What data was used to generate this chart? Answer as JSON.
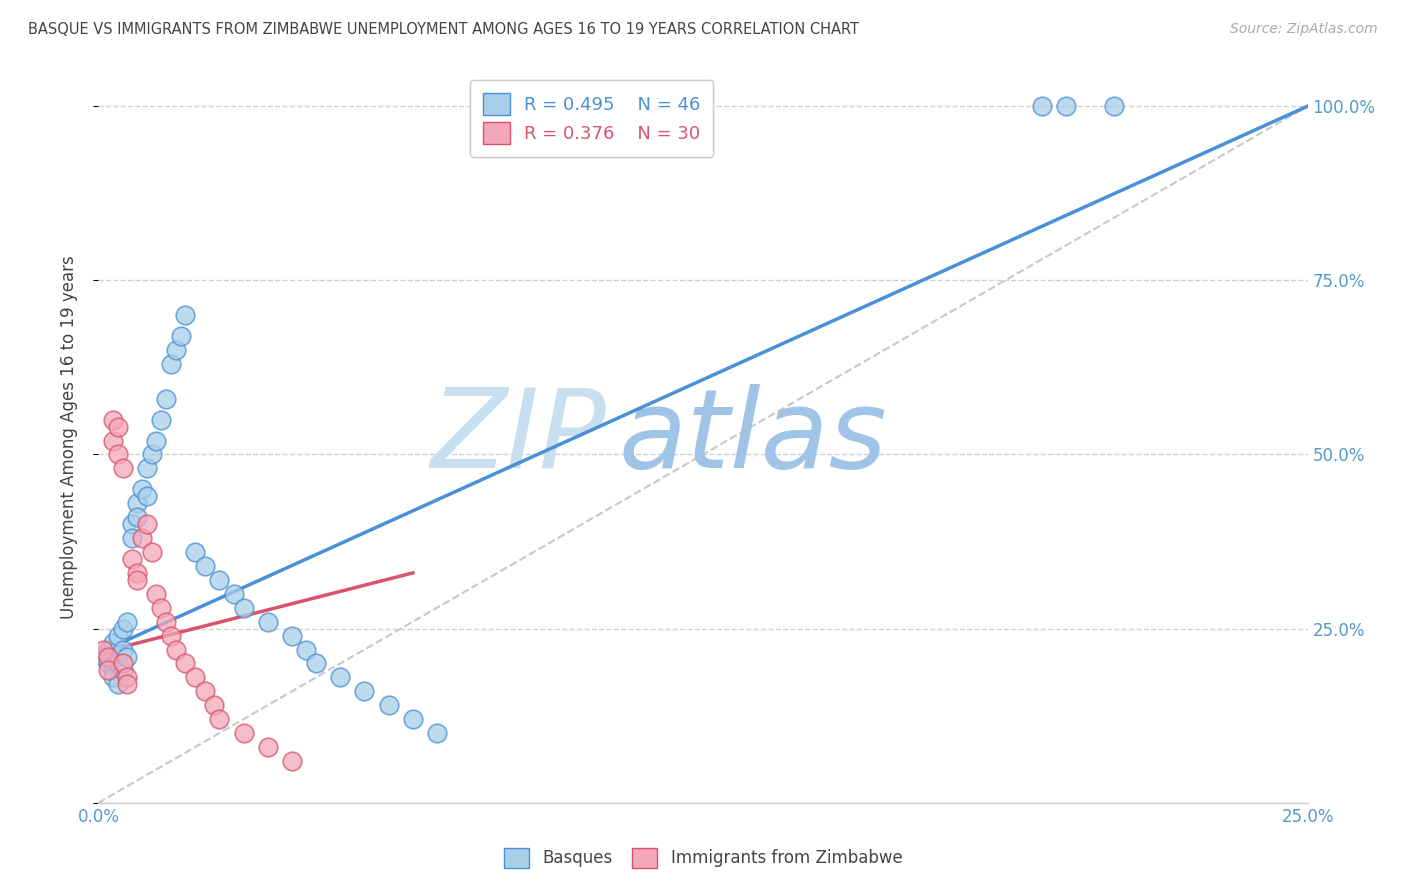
{
  "title": "BASQUE VS IMMIGRANTS FROM ZIMBABWE UNEMPLOYMENT AMONG AGES 16 TO 19 YEARS CORRELATION CHART",
  "source": "Source: ZipAtlas.com",
  "ylabel": "Unemployment Among Ages 16 to 19 years",
  "xlim": [
    0.0,
    0.25
  ],
  "ylim": [
    0.0,
    1.05
  ],
  "basque_x": [
    0.001,
    0.002,
    0.002,
    0.003,
    0.003,
    0.003,
    0.004,
    0.004,
    0.004,
    0.005,
    0.005,
    0.005,
    0.006,
    0.006,
    0.007,
    0.007,
    0.008,
    0.008,
    0.009,
    0.01,
    0.01,
    0.011,
    0.012,
    0.013,
    0.014,
    0.015,
    0.016,
    0.017,
    0.018,
    0.02,
    0.022,
    0.025,
    0.028,
    0.03,
    0.035,
    0.04,
    0.043,
    0.045,
    0.05,
    0.055,
    0.06,
    0.065,
    0.07,
    0.195,
    0.2,
    0.21
  ],
  "basque_y": [
    0.21,
    0.22,
    0.2,
    0.23,
    0.19,
    0.18,
    0.24,
    0.2,
    0.17,
    0.25,
    0.22,
    0.19,
    0.26,
    0.21,
    0.4,
    0.38,
    0.43,
    0.41,
    0.45,
    0.48,
    0.44,
    0.5,
    0.52,
    0.55,
    0.58,
    0.63,
    0.65,
    0.67,
    0.7,
    0.36,
    0.34,
    0.32,
    0.3,
    0.28,
    0.26,
    0.24,
    0.22,
    0.2,
    0.18,
    0.16,
    0.14,
    0.12,
    0.1,
    1.0,
    1.0,
    1.0
  ],
  "zimbabwe_x": [
    0.001,
    0.002,
    0.002,
    0.003,
    0.003,
    0.004,
    0.004,
    0.005,
    0.005,
    0.006,
    0.006,
    0.007,
    0.008,
    0.008,
    0.009,
    0.01,
    0.011,
    0.012,
    0.013,
    0.014,
    0.015,
    0.016,
    0.018,
    0.02,
    0.022,
    0.024,
    0.025,
    0.03,
    0.035,
    0.04
  ],
  "zimbabwe_y": [
    0.22,
    0.21,
    0.19,
    0.55,
    0.52,
    0.54,
    0.5,
    0.48,
    0.2,
    0.18,
    0.17,
    0.35,
    0.33,
    0.32,
    0.38,
    0.4,
    0.36,
    0.3,
    0.28,
    0.26,
    0.24,
    0.22,
    0.2,
    0.18,
    0.16,
    0.14,
    0.12,
    0.1,
    0.08,
    0.06
  ],
  "basque_line_x": [
    0.0,
    0.25
  ],
  "basque_line_y": [
    0.215,
    1.0
  ],
  "zimbabwe_line_x": [
    0.0,
    0.065
  ],
  "zimbabwe_line_y": [
    0.215,
    0.33
  ],
  "R_basque": 0.495,
  "N_basque": 46,
  "R_zimbabwe": 0.376,
  "N_zimbabwe": 30,
  "color_basque": "#a8cfe8",
  "color_zimbabwe": "#f4a7b9",
  "color_basque_line": "#4a90d9",
  "color_zimbabwe_line": "#d9546a",
  "color_diagonal": "#bbbbbb",
  "watermark_zip": "ZIP",
  "watermark_atlas": "atlas",
  "watermark_color_zip": "#c8dff0",
  "watermark_color_atlas": "#a0c4e8",
  "grid_color": "#cccccc",
  "title_color": "#444444",
  "axis_label_color": "#444444",
  "right_axis_color": "#5599cc",
  "source_color": "#aaaaaa",
  "legend_text_basque_color": "#4a90d9",
  "legend_text_zimbabwe_color": "#d9546a"
}
